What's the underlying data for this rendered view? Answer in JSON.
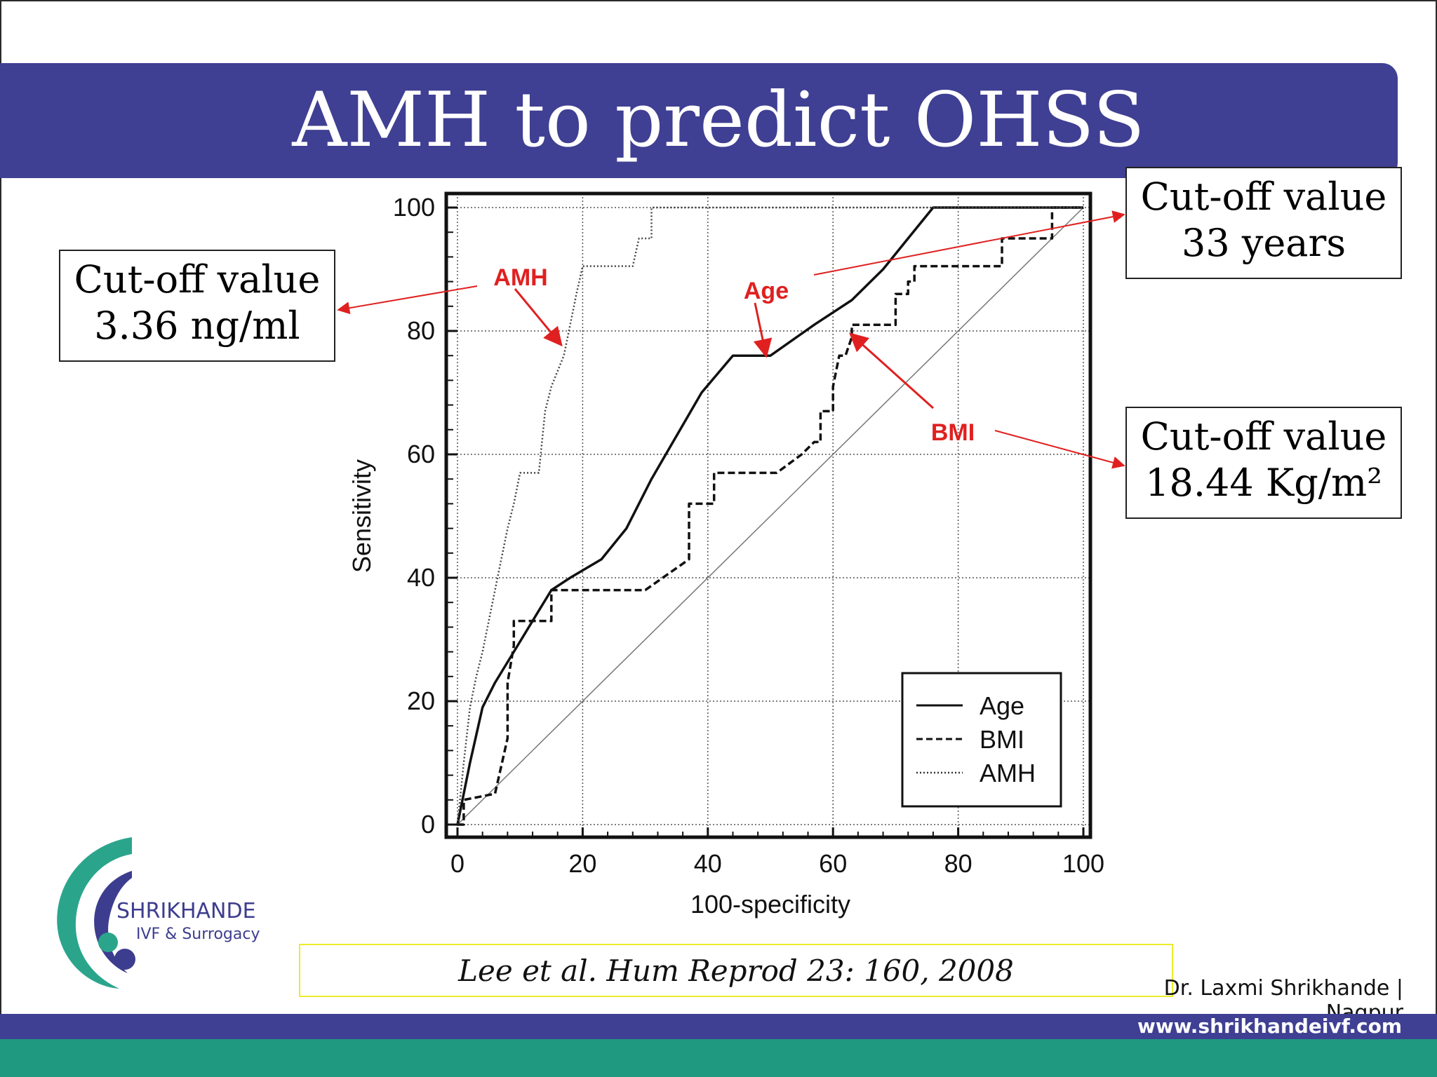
{
  "title": "AMH to predict OHSS",
  "colors": {
    "title_bar": "#3f3f93",
    "footer_blue": "#3f3f93",
    "footer_green": "#1f9a80",
    "annotation": "#e02020",
    "logo_teal": "#2aa58c",
    "logo_navy": "#3d3d8f"
  },
  "callouts": {
    "amh": {
      "line1": "Cut-off value",
      "line2": "3.36 ng/ml"
    },
    "age": {
      "line1": "Cut-off value",
      "line2": "33 years"
    },
    "bmi": {
      "line1": "Cut-off value",
      "line2": "18.44 Kg/m²"
    }
  },
  "annotations": {
    "amh": "AMH",
    "age": "Age",
    "bmi": "BMI"
  },
  "citation": "Lee et al. Hum Reprod 23: 160, 2008",
  "author": "Dr. Laxmi Shrikhande | Nagpur",
  "website": "www.shrikhandeivf.com",
  "logo": {
    "name": "SHRIKHANDE",
    "sub": "IVF & Surrogacy",
    "icon": "shrikhande-logo-icon"
  },
  "chart_data": {
    "type": "line",
    "xlabel": "100-specificity",
    "ylabel": "Sensitivity",
    "xlim": [
      0,
      100
    ],
    "ylim": [
      0,
      100
    ],
    "x_ticks": [
      0,
      20,
      40,
      60,
      80,
      100
    ],
    "y_ticks": [
      0,
      20,
      40,
      60,
      80,
      100
    ],
    "grid": true,
    "reference_line": true,
    "legend_position": "bottom-right",
    "series": [
      {
        "name": "Age",
        "style": "solid",
        "x": [
          0,
          2,
          4,
          6,
          9,
          12,
          15,
          18,
          23,
          27,
          31,
          35,
          39,
          44,
          50,
          57,
          63,
          68,
          72,
          76,
          100
        ],
        "y": [
          0,
          10,
          19,
          23,
          28,
          33,
          38,
          40,
          43,
          48,
          56,
          63,
          70,
          76,
          76,
          81,
          85,
          90,
          95,
          100,
          100
        ]
      },
      {
        "name": "BMI",
        "style": "dashed",
        "x": [
          0,
          1,
          1,
          6,
          8,
          8,
          9,
          9,
          15,
          15,
          30,
          37,
          37,
          41,
          41,
          45,
          51,
          55,
          57,
          58,
          58,
          60,
          60,
          61,
          62,
          63,
          63,
          70,
          70,
          72,
          72,
          73,
          73,
          87,
          87,
          95,
          95,
          100
        ],
        "y": [
          0,
          0,
          4,
          5,
          14,
          23,
          29,
          33,
          33,
          38,
          38,
          43,
          52,
          52,
          57,
          57,
          57,
          60,
          62,
          62,
          67,
          67,
          71,
          76,
          76,
          79,
          81,
          81,
          86,
          86,
          88,
          88,
          90.5,
          90.5,
          95,
          95,
          100,
          100
        ]
      },
      {
        "name": "AMH",
        "style": "dotted",
        "x": [
          0,
          1,
          2,
          3,
          4,
          5,
          6,
          7,
          8,
          9,
          10,
          11,
          13,
          13.5,
          14,
          15,
          17,
          18,
          19,
          20,
          23,
          28,
          29,
          31,
          31,
          100
        ],
        "y": [
          0,
          10,
          19,
          24,
          28,
          33,
          38,
          43,
          48,
          52,
          57,
          57,
          57,
          62,
          67,
          71,
          76,
          81,
          86,
          90.5,
          90.5,
          90.5,
          95,
          95,
          100,
          100
        ]
      }
    ]
  }
}
